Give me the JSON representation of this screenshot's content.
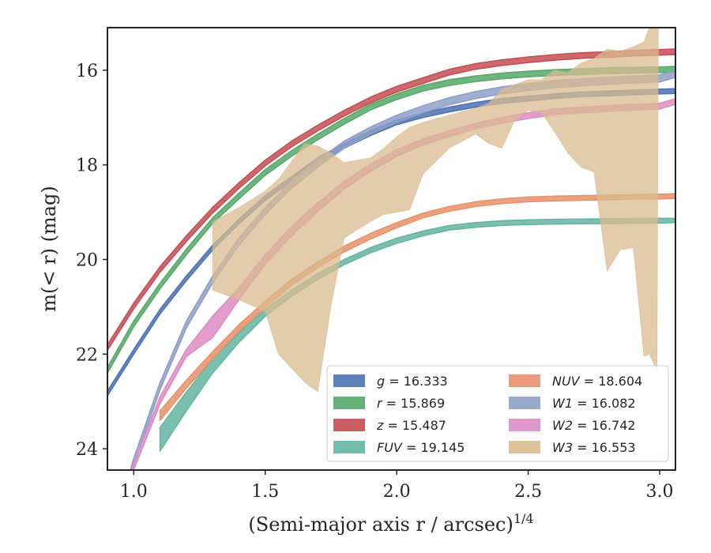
{
  "chart_data": {
    "type": "area",
    "xlabel": "(Semi-major axis r / arcsec)",
    "xlabel_sup": "1/4",
    "ylabel": "m(< r) (mag)",
    "xlim": [
      0.9,
      3.06
    ],
    "ylim": [
      24.45,
      15.1
    ],
    "y_inverted": true,
    "grid": false,
    "legend_position": "lower-right",
    "xticks": [
      "1.0",
      "1.5",
      "2.0",
      "2.5",
      "3.0"
    ],
    "xtick_values": [
      1.0,
      1.5,
      2.0,
      2.5,
      3.0
    ],
    "yticks": [
      "16",
      "18",
      "20",
      "22",
      "24"
    ],
    "ytick_values": [
      16,
      18,
      20,
      22,
      24
    ],
    "series": [
      {
        "name": "g",
        "value": "16.333",
        "color": "#4c72b0",
        "start": 0.9,
        "band": [
          [
            0.9,
            22.78,
            22.88
          ],
          [
            1.0,
            21.9,
            22.0
          ],
          [
            1.1,
            21.05,
            21.15
          ],
          [
            1.2,
            20.35,
            20.45
          ],
          [
            1.3,
            19.7,
            19.8
          ],
          [
            1.4,
            19.15,
            19.25
          ],
          [
            1.5,
            18.65,
            18.75
          ],
          [
            1.6,
            18.25,
            18.35
          ],
          [
            1.7,
            17.85,
            17.95
          ],
          [
            1.8,
            17.55,
            17.65
          ],
          [
            1.9,
            17.28,
            17.38
          ],
          [
            2.0,
            17.05,
            17.15
          ],
          [
            2.1,
            16.9,
            17.0
          ],
          [
            2.2,
            16.78,
            16.88
          ],
          [
            2.3,
            16.68,
            16.78
          ],
          [
            2.4,
            16.6,
            16.7
          ],
          [
            2.5,
            16.55,
            16.65
          ],
          [
            2.6,
            16.5,
            16.6
          ],
          [
            2.7,
            16.46,
            16.56
          ],
          [
            2.8,
            16.44,
            16.54
          ],
          [
            2.9,
            16.42,
            16.52
          ],
          [
            3.0,
            16.4,
            16.5
          ],
          [
            3.06,
            16.39,
            16.49
          ]
        ]
      },
      {
        "name": "r",
        "value": "15.869",
        "color": "#55a868",
        "start": 0.9,
        "band": [
          [
            0.9,
            22.28,
            22.4
          ],
          [
            1.0,
            21.3,
            21.42
          ],
          [
            1.1,
            20.5,
            20.62
          ],
          [
            1.2,
            19.78,
            19.9
          ],
          [
            1.3,
            19.12,
            19.24
          ],
          [
            1.4,
            18.6,
            18.72
          ],
          [
            1.5,
            18.1,
            18.22
          ],
          [
            1.6,
            17.7,
            17.82
          ],
          [
            1.7,
            17.35,
            17.47
          ],
          [
            1.8,
            17.02,
            17.14
          ],
          [
            1.9,
            16.72,
            16.84
          ],
          [
            2.0,
            16.5,
            16.62
          ],
          [
            2.1,
            16.32,
            16.44
          ],
          [
            2.2,
            16.2,
            16.32
          ],
          [
            2.3,
            16.12,
            16.24
          ],
          [
            2.4,
            16.06,
            16.18
          ],
          [
            2.5,
            16.02,
            16.14
          ],
          [
            2.6,
            15.99,
            16.11
          ],
          [
            2.7,
            15.97,
            16.09
          ],
          [
            2.8,
            15.95,
            16.07
          ],
          [
            2.9,
            15.94,
            16.06
          ],
          [
            3.0,
            15.93,
            16.05
          ],
          [
            3.06,
            15.92,
            16.04
          ]
        ]
      },
      {
        "name": "z",
        "value": "15.487",
        "color": "#c44e52",
        "start": 0.9,
        "band": [
          [
            0.9,
            21.8,
            21.92
          ],
          [
            1.0,
            20.92,
            21.04
          ],
          [
            1.1,
            20.15,
            20.27
          ],
          [
            1.2,
            19.5,
            19.62
          ],
          [
            1.3,
            18.9,
            19.02
          ],
          [
            1.4,
            18.38,
            18.5
          ],
          [
            1.5,
            17.9,
            18.02
          ],
          [
            1.6,
            17.5,
            17.62
          ],
          [
            1.7,
            17.16,
            17.28
          ],
          [
            1.8,
            16.85,
            16.97
          ],
          [
            1.9,
            16.57,
            16.69
          ],
          [
            2.0,
            16.34,
            16.46
          ],
          [
            2.1,
            16.16,
            16.28
          ],
          [
            2.2,
            15.98,
            16.1
          ],
          [
            2.3,
            15.86,
            15.98
          ],
          [
            2.4,
            15.78,
            15.9
          ],
          [
            2.5,
            15.72,
            15.84
          ],
          [
            2.6,
            15.67,
            15.79
          ],
          [
            2.7,
            15.63,
            15.75
          ],
          [
            2.8,
            15.61,
            15.73
          ],
          [
            2.9,
            15.58,
            15.7
          ],
          [
            3.0,
            15.56,
            15.68
          ],
          [
            3.06,
            15.55,
            15.67
          ]
        ]
      },
      {
        "name": "FUV",
        "value": "19.145",
        "color": "#64b5a0",
        "start": 1.1,
        "band": [
          [
            1.1,
            23.55,
            24.05
          ],
          [
            1.2,
            22.8,
            23.2
          ],
          [
            1.3,
            22.1,
            22.4
          ],
          [
            1.4,
            21.55,
            21.75
          ],
          [
            1.5,
            21.05,
            21.2
          ],
          [
            1.6,
            20.65,
            20.78
          ],
          [
            1.7,
            20.3,
            20.42
          ],
          [
            1.8,
            20.0,
            20.11
          ],
          [
            1.9,
            19.75,
            19.86
          ],
          [
            2.0,
            19.55,
            19.66
          ],
          [
            2.1,
            19.4,
            19.5
          ],
          [
            2.2,
            19.28,
            19.38
          ],
          [
            2.3,
            19.22,
            19.32
          ],
          [
            2.4,
            19.18,
            19.28
          ],
          [
            2.5,
            19.16,
            19.26
          ],
          [
            2.6,
            19.15,
            19.25
          ],
          [
            2.8,
            19.14,
            19.24
          ],
          [
            3.0,
            19.13,
            19.23
          ],
          [
            3.06,
            19.13,
            19.22
          ]
        ]
      },
      {
        "name": "NUV",
        "value": "18.604",
        "color": "#e8906a",
        "start": 1.1,
        "band": [
          [
            1.1,
            23.2,
            23.4
          ],
          [
            1.2,
            22.55,
            22.72
          ],
          [
            1.3,
            21.95,
            22.1
          ],
          [
            1.4,
            21.38,
            21.52
          ],
          [
            1.5,
            20.88,
            21.01
          ],
          [
            1.6,
            20.42,
            20.55
          ],
          [
            1.7,
            20.05,
            20.17
          ],
          [
            1.8,
            19.72,
            19.84
          ],
          [
            1.9,
            19.45,
            19.57
          ],
          [
            2.0,
            19.22,
            19.33
          ],
          [
            2.1,
            19.02,
            19.12
          ],
          [
            2.2,
            18.88,
            18.98
          ],
          [
            2.3,
            18.78,
            18.88
          ],
          [
            2.4,
            18.72,
            18.82
          ],
          [
            2.5,
            18.68,
            18.78
          ],
          [
            2.6,
            18.66,
            18.76
          ],
          [
            2.8,
            18.64,
            18.74
          ],
          [
            3.0,
            18.62,
            18.72
          ],
          [
            3.06,
            18.61,
            18.71
          ]
        ]
      },
      {
        "name": "W1",
        "value": "16.082",
        "color": "#8e9fc8",
        "start": 0.9,
        "band": [
          [
            0.9,
            26.1,
            26.25
          ],
          [
            1.0,
            24.2,
            24.35
          ],
          [
            1.1,
            22.6,
            22.75
          ],
          [
            1.2,
            21.3,
            21.45
          ],
          [
            1.3,
            20.35,
            20.5
          ],
          [
            1.4,
            19.55,
            19.7
          ],
          [
            1.5,
            18.9,
            19.05
          ],
          [
            1.6,
            18.35,
            18.5
          ],
          [
            1.7,
            17.9,
            18.05
          ],
          [
            1.8,
            17.5,
            17.65
          ],
          [
            1.9,
            17.2,
            17.35
          ],
          [
            2.0,
            16.95,
            17.1
          ],
          [
            2.1,
            16.75,
            16.9
          ],
          [
            2.2,
            16.58,
            16.73
          ],
          [
            2.3,
            16.45,
            16.6
          ],
          [
            2.4,
            16.35,
            16.5
          ],
          [
            2.5,
            16.28,
            16.43
          ],
          [
            2.6,
            16.22,
            16.37
          ],
          [
            2.7,
            16.18,
            16.33
          ],
          [
            2.8,
            16.15,
            16.3
          ],
          [
            2.9,
            16.12,
            16.27
          ],
          [
            3.0,
            16.1,
            16.25
          ],
          [
            3.06,
            16.0,
            16.15
          ]
        ]
      },
      {
        "name": "W2",
        "value": "16.742",
        "color": "#dd8cc3",
        "start": 0.9,
        "band": [
          [
            0.9,
            25.9,
            26.05
          ],
          [
            1.0,
            24.3,
            24.45
          ],
          [
            1.1,
            22.9,
            23.05
          ],
          [
            1.2,
            21.9,
            22.05
          ],
          [
            1.3,
            21.2,
            21.65
          ],
          [
            1.4,
            20.6,
            20.85
          ],
          [
            1.5,
            19.9,
            20.1
          ],
          [
            1.6,
            19.3,
            19.5
          ],
          [
            1.7,
            18.8,
            18.98
          ],
          [
            1.8,
            18.35,
            18.52
          ],
          [
            1.9,
            17.98,
            18.14
          ],
          [
            2.0,
            17.68,
            17.82
          ],
          [
            2.1,
            17.45,
            17.58
          ],
          [
            2.2,
            17.28,
            17.4
          ],
          [
            2.3,
            17.12,
            17.24
          ],
          [
            2.4,
            17.0,
            17.12
          ],
          [
            2.5,
            16.9,
            17.02
          ],
          [
            2.6,
            16.82,
            16.94
          ],
          [
            2.7,
            16.78,
            16.9
          ],
          [
            2.8,
            16.75,
            16.87
          ],
          [
            2.9,
            16.72,
            16.84
          ],
          [
            3.0,
            16.7,
            16.82
          ],
          [
            3.06,
            16.6,
            16.72
          ]
        ]
      },
      {
        "name": "W3",
        "value": "16.553",
        "color": "#d9bb8f",
        "start": 1.3,
        "band": [
          [
            1.3,
            19.2,
            20.65
          ],
          [
            1.4,
            18.9,
            20.85
          ],
          [
            1.5,
            18.55,
            21.1
          ],
          [
            1.55,
            18.3,
            22.0
          ],
          [
            1.65,
            17.55,
            22.6
          ],
          [
            1.7,
            17.6,
            22.8
          ],
          [
            1.75,
            17.75,
            21.0
          ],
          [
            1.8,
            17.95,
            19.55
          ],
          [
            1.9,
            17.85,
            19.2
          ],
          [
            1.95,
            17.65,
            19.05
          ],
          [
            2.0,
            17.4,
            19.0
          ],
          [
            2.05,
            17.2,
            18.95
          ],
          [
            2.1,
            17.1,
            18.2
          ],
          [
            2.2,
            16.95,
            17.65
          ],
          [
            2.3,
            16.8,
            17.35
          ],
          [
            2.35,
            16.7,
            17.55
          ],
          [
            2.4,
            16.4,
            17.65
          ],
          [
            2.45,
            16.3,
            17.05
          ],
          [
            2.5,
            16.2,
            16.85
          ],
          [
            2.55,
            16.2,
            16.9
          ],
          [
            2.6,
            16.0,
            17.3
          ],
          [
            2.65,
            16.05,
            17.75
          ],
          [
            2.7,
            15.85,
            18.05
          ],
          [
            2.75,
            15.75,
            18.15
          ],
          [
            2.8,
            15.55,
            20.25
          ],
          [
            2.85,
            15.6,
            19.8
          ],
          [
            2.9,
            15.5,
            19.75
          ],
          [
            2.94,
            15.4,
            22.05
          ],
          [
            2.96,
            15.1,
            22.0
          ],
          [
            2.99,
            15.05,
            22.35
          ],
          [
            2.995,
            15.1,
            15.2
          ]
        ]
      }
    ],
    "legend": [
      {
        "name": "g",
        "value": "16.333"
      },
      {
        "name": "r",
        "value": "15.869"
      },
      {
        "name": "z",
        "value": "15.487"
      },
      {
        "name": "FUV",
        "value": "19.145"
      },
      {
        "name": "NUV",
        "value": "18.604"
      },
      {
        "name": "W1",
        "value": "16.082"
      },
      {
        "name": "W2",
        "value": "16.742"
      },
      {
        "name": "W3",
        "value": "16.553"
      }
    ]
  }
}
